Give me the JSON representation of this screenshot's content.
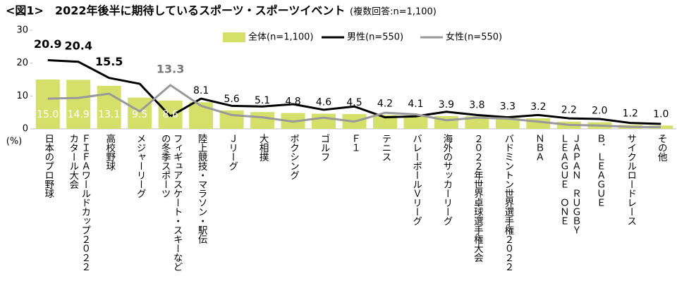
{
  "chart_data": {
    "type": "bar-line",
    "title": "<図1>　2022年後半に期待しているスポーツ・スポーツイベント",
    "subtitle": "(複数回答:n=1,100)",
    "y_label": "(%)",
    "categories": [
      "日本のプロ野球",
      "ＦＩＦＡワールドカップ２０２２\nカタール大会",
      "高校野球",
      "メジャーリーグ",
      "フィギュアスケート・スキーなど\nの冬季スポーツ",
      "陸上競技・マラソン・駅伝",
      "Ｊリーグ",
      "大相撲",
      "ボクシング",
      "ゴルフ",
      "Ｆ１",
      "テニス",
      "バレーボールＶリーグ",
      "海外のサッカーリーグ",
      "２０２２年世界卓球選手権大会",
      "バドミントン世界選手権２０２２",
      "ＮＢＡ",
      "ＪＡＰＡＮ　ＲＵＧＢＹ\nＬＥＡＧＵＥ　ＯＮＥ",
      "Ｂ．ＬＥＡＧＵＥ",
      "サイクルロードレース",
      "その他"
    ],
    "series": [
      {
        "name": "全体(n=1,100)",
        "type": "bar",
        "color": "#d4e06a",
        "values": [
          15.0,
          14.9,
          13.1,
          9.5,
          8.6,
          8.1,
          5.6,
          5.1,
          4.8,
          4.6,
          4.5,
          4.2,
          4.1,
          3.9,
          3.8,
          3.3,
          3.2,
          2.2,
          2.0,
          1.2,
          1.0
        ],
        "value_labels": [
          "15.0",
          "14.9",
          "13.1",
          "9.5",
          "8.6",
          "8.1",
          "5.6",
          "5.1",
          "4.8",
          "4.6",
          "4.5",
          "4.2",
          "4.1",
          "3.9",
          "3.8",
          "3.3",
          "3.2",
          "2.2",
          "2.0",
          "1.2",
          "1.0"
        ]
      },
      {
        "name": "男性(n=550)",
        "type": "line",
        "color": "#000000",
        "values": [
          20.9,
          20.4,
          15.5,
          13.7,
          3.8,
          9.2,
          7.0,
          6.8,
          7.5,
          5.8,
          6.8,
          3.5,
          3.8,
          5.2,
          4.2,
          3.5,
          4.2,
          3.2,
          3.0,
          1.8,
          1.5
        ],
        "value_labels": [
          "20.9",
          "20.4",
          "15.5",
          null,
          null,
          null,
          null,
          null,
          null,
          null,
          null,
          null,
          null,
          null,
          null,
          null,
          null,
          null,
          null,
          null,
          null
        ]
      },
      {
        "name": "女性(n=550)",
        "type": "line",
        "color": "#999999",
        "values": [
          9.2,
          9.4,
          10.7,
          5.3,
          13.3,
          7.0,
          4.2,
          3.5,
          2.2,
          3.4,
          2.2,
          4.9,
          4.4,
          2.6,
          3.4,
          3.1,
          2.2,
          1.2,
          1.0,
          0.6,
          0.5
        ],
        "value_labels": [
          null,
          null,
          null,
          null,
          "13.3",
          null,
          null,
          null,
          null,
          null,
          null,
          null,
          null,
          null,
          null,
          null,
          null,
          null,
          null,
          null,
          null
        ]
      }
    ],
    "ylim": [
      0,
      30
    ],
    "yticks": [
      0,
      10,
      20,
      30
    ]
  }
}
